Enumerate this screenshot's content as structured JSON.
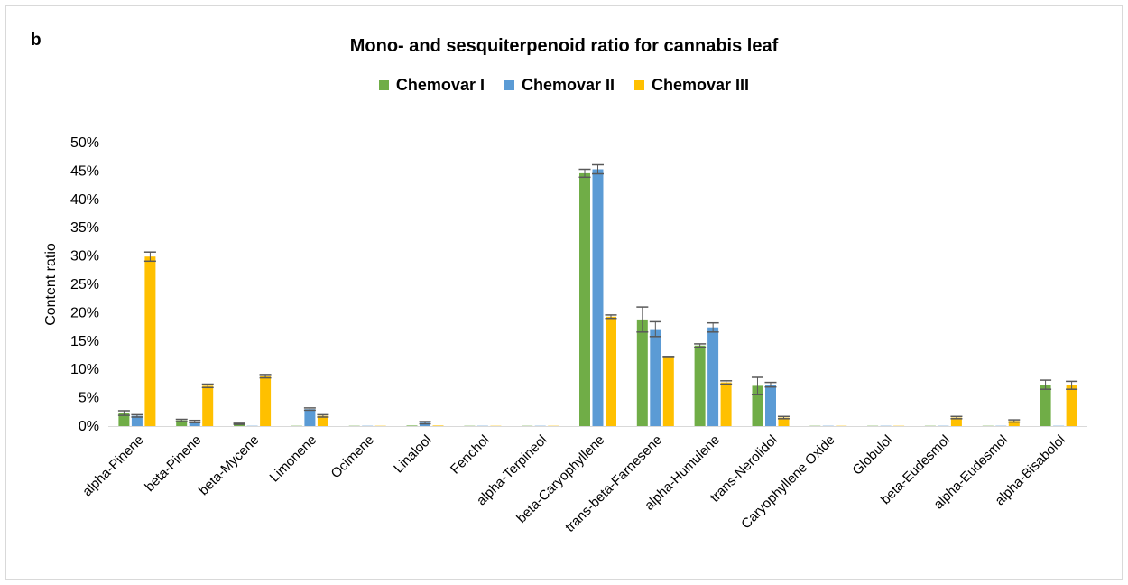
{
  "panel_label": "b",
  "chart_data": {
    "type": "bar",
    "title": "Mono- and sesquiterpenoid ratio for cannabis leaf",
    "xlabel": "",
    "ylabel": "Content ratio",
    "ylim": [
      0,
      50
    ],
    "yticks": [
      "0%",
      "5%",
      "10%",
      "15%",
      "20%",
      "25%",
      "30%",
      "35%",
      "40%",
      "45%",
      "50%"
    ],
    "grid": false,
    "legend_position": "top",
    "categories": [
      "alpha-Pinene",
      "beta-Pinene",
      "beta-Mycene",
      "Limonene",
      "Ocimene",
      "Linalool",
      "Fenchol",
      "alpha-Terpineol",
      "beta-Caryophyllene",
      "trans-beta-Farnesene",
      "alpha-Humulene",
      "trans-Nerolidol",
      "Caryophyllene Oxide",
      "Globulol",
      "beta-Eudesmol",
      "alpha-Eudesmol",
      "alpha-Bisabolol"
    ],
    "series": [
      {
        "name": "Chemovar I",
        "color": "#70ad47",
        "values": [
          2.3,
          1.0,
          0.4,
          0.05,
          0.05,
          0.1,
          0.05,
          0.05,
          44.6,
          18.8,
          14.2,
          7.1,
          0.05,
          0.05,
          0.05,
          0.05,
          7.3
        ],
        "errors": [
          0.4,
          0.2,
          0.1,
          0,
          0,
          0,
          0,
          0,
          0.7,
          2.2,
          0.3,
          1.5,
          0,
          0,
          0,
          0,
          0.8
        ]
      },
      {
        "name": "Chemovar II",
        "color": "#5b9bd5",
        "values": [
          1.8,
          0.8,
          0.05,
          3.0,
          0.05,
          0.6,
          0.05,
          0.05,
          45.3,
          17.1,
          17.4,
          7.3,
          0.05,
          0.05,
          0.05,
          0.05,
          0.05
        ],
        "errors": [
          0.2,
          0.2,
          0,
          0.2,
          0,
          0.2,
          0,
          0,
          0.8,
          1.3,
          0.8,
          0.4,
          0,
          0,
          0,
          0,
          0
        ]
      },
      {
        "name": "Chemovar III",
        "color": "#ffc000",
        "values": [
          29.9,
          7.1,
          8.8,
          1.8,
          0.05,
          0.1,
          0.05,
          0.05,
          19.3,
          12.2,
          7.7,
          1.5,
          0.05,
          0.05,
          1.5,
          0.9,
          7.2
        ],
        "errors": [
          0.8,
          0.3,
          0.3,
          0.2,
          0,
          0,
          0,
          0,
          0.3,
          0.1,
          0.3,
          0.2,
          0,
          0,
          0.2,
          0.2,
          0.7
        ]
      }
    ]
  }
}
